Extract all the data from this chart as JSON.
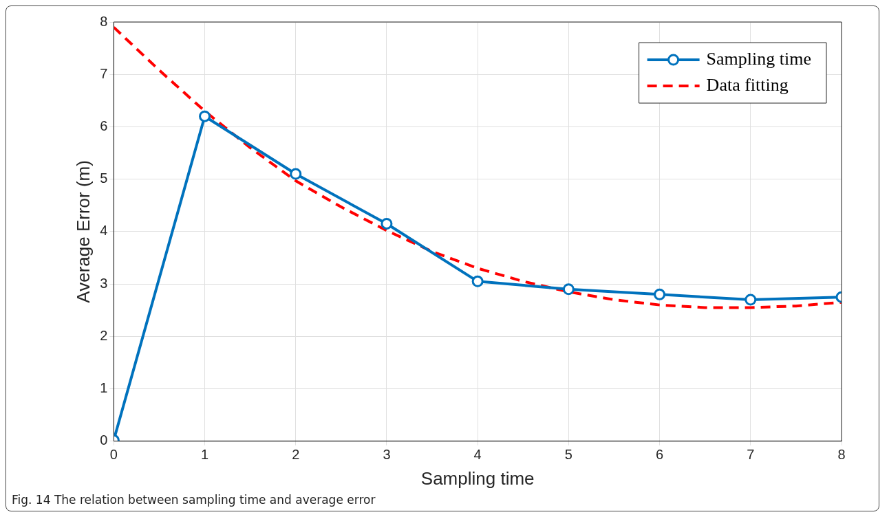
{
  "chart_data": {
    "type": "line",
    "xlabel": "Sampling time",
    "ylabel": "Average Error (m)",
    "xlim": [
      0,
      8
    ],
    "xticks": [
      0,
      1,
      2,
      3,
      4,
      5,
      6,
      7,
      8
    ],
    "ylim": [
      0,
      8
    ],
    "yticks": [
      0,
      1,
      2,
      3,
      4,
      5,
      6,
      7,
      8
    ],
    "grid": true,
    "legend": "top right",
    "series": [
      {
        "name": "Sampling time",
        "color": "#0072bd",
        "marker": "circle",
        "line_style": "solid",
        "x": [
          0,
          1,
          2,
          3,
          4,
          5,
          6,
          7,
          8
        ],
        "values": [
          0.02,
          6.2,
          5.1,
          4.15,
          3.05,
          2.9,
          2.8,
          2.7,
          2.75
        ]
      },
      {
        "name": "Data fitting",
        "color": "#ff0000",
        "marker": "none",
        "line_style": "dashed",
        "x": [
          0,
          0.5,
          1,
          1.5,
          2,
          2.5,
          3,
          3.5,
          4,
          4.5,
          5,
          5.5,
          6,
          6.5,
          7,
          7.5,
          8
        ],
        "values": [
          7.9,
          7.08,
          6.3,
          5.6,
          4.97,
          4.47,
          4.02,
          3.62,
          3.3,
          3.05,
          2.85,
          2.7,
          2.6,
          2.55,
          2.55,
          2.58,
          2.65
        ]
      }
    ],
    "annotations": [
      "Fig. 14 The relation between sampling time and average error"
    ]
  }
}
